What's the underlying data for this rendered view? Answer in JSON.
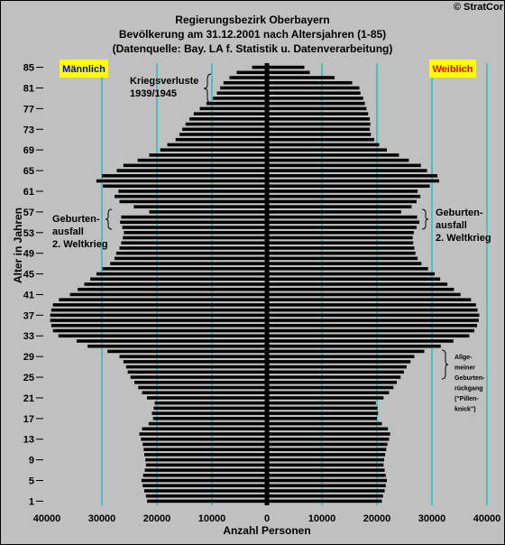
{
  "header": {
    "title": "Regierungsbezirk Oberbayern",
    "subtitle": "Bevölkerung am 31.12.2001 nach Altersjahren (1-85)",
    "source": "(Datenquelle: Bay. LA f. Statistik u. Datenverarbeitung)",
    "copyright": "© StratCor"
  },
  "labels": {
    "male": "Männlich",
    "female": "Weiblich",
    "kriegsverluste": [
      "Kriegsverluste",
      "1939/1945"
    ],
    "geburtenausfall_left": [
      "Geburten-",
      "ausfall",
      "2. Weltkrieg"
    ],
    "geburtenausfall_right": [
      "Geburten-",
      "ausfall",
      "2. Weltkrieg"
    ],
    "pillenknick": [
      "Allge-",
      "meiner",
      "Geburten-",
      "rückgang",
      "(\"Pillen-",
      "knick\")"
    ]
  },
  "colors": {
    "background": "#c0c0c0",
    "bar": "#000000",
    "gridline": "#00c0c0",
    "badge_bg": "#ffff00",
    "male_text": "#0000c0",
    "female_text": "#ff0000"
  },
  "chart_data": {
    "type": "bar",
    "orientation": "horizontal-population-pyramid",
    "xlabel": "Anzahl Personen",
    "ylabel": "Alter in Jahren",
    "xlim": [
      -40000,
      40000
    ],
    "x_ticks": [
      "40000",
      "30000",
      "20000",
      "10000",
      "0",
      "10000",
      "20000",
      "30000",
      "40000"
    ],
    "y_ticks": [
      1,
      5,
      9,
      13,
      17,
      21,
      25,
      29,
      33,
      37,
      41,
      45,
      49,
      53,
      57,
      61,
      65,
      69,
      73,
      77,
      81,
      85
    ],
    "grid": true,
    "ages": [
      1,
      2,
      3,
      4,
      5,
      6,
      7,
      8,
      9,
      10,
      11,
      12,
      13,
      14,
      15,
      16,
      17,
      18,
      19,
      20,
      21,
      22,
      23,
      24,
      25,
      26,
      27,
      28,
      29,
      30,
      31,
      32,
      33,
      34,
      35,
      36,
      37,
      38,
      39,
      40,
      41,
      42,
      43,
      44,
      45,
      46,
      47,
      48,
      49,
      50,
      51,
      52,
      53,
      54,
      55,
      56,
      57,
      58,
      59,
      60,
      61,
      62,
      63,
      64,
      65,
      66,
      67,
      68,
      69,
      70,
      71,
      72,
      73,
      74,
      75,
      76,
      77,
      78,
      79,
      80,
      81,
      82,
      83,
      84,
      85
    ],
    "series": [
      {
        "name": "Männlich",
        "values": [
          21800,
          22000,
          22300,
          22600,
          22800,
          22500,
          22200,
          22000,
          22100,
          22300,
          22400,
          22600,
          22900,
          23200,
          22700,
          21500,
          20700,
          20900,
          20600,
          20400,
          21800,
          22700,
          23400,
          24100,
          24800,
          25300,
          25600,
          26100,
          26800,
          29000,
          32600,
          34600,
          37900,
          38900,
          39200,
          39400,
          39400,
          39200,
          38900,
          37800,
          35800,
          34400,
          33200,
          32100,
          31000,
          29900,
          28500,
          27700,
          27400,
          26800,
          26500,
          26200,
          26000,
          26300,
          26700,
          26500,
          21400,
          24200,
          26800,
          27700,
          27000,
          29800,
          31000,
          30000,
          27300,
          26100,
          23500,
          21400,
          19400,
          18100,
          16600,
          15900,
          15400,
          14800,
          14100,
          13300,
          12200,
          11000,
          9800,
          9100,
          8500,
          7900,
          6800,
          5500,
          2700
        ]
      },
      {
        "name": "Weiblich",
        "values": [
          20900,
          21100,
          21400,
          21600,
          21800,
          21600,
          21400,
          21200,
          21300,
          21500,
          21700,
          21900,
          22200,
          22400,
          22000,
          20900,
          20000,
          20200,
          20100,
          19800,
          21200,
          22200,
          23000,
          23600,
          24300,
          24900,
          25400,
          26100,
          26800,
          28600,
          31600,
          33900,
          36800,
          37700,
          38200,
          38500,
          38600,
          38300,
          38000,
          37100,
          35200,
          34000,
          32800,
          31500,
          30500,
          29300,
          28100,
          27400,
          27000,
          26800,
          26600,
          26500,
          26700,
          27200,
          27700,
          27300,
          24400,
          26300,
          27200,
          27900,
          27400,
          29600,
          31300,
          31000,
          29100,
          28000,
          25800,
          24000,
          21800,
          20400,
          19500,
          18900,
          18700,
          18800,
          18700,
          18400,
          18100,
          17800,
          17500,
          17000,
          16800,
          15500,
          12300,
          7800,
          6800
        ]
      }
    ]
  }
}
